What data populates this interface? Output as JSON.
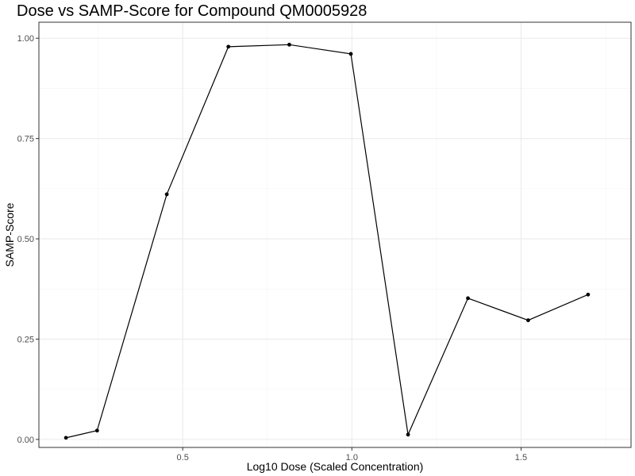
{
  "chart_data": {
    "type": "line",
    "title": "Dose vs SAMP-Score for Compound QM0005928",
    "xlabel": "Log10 Dose (Scaled Concentration)",
    "ylabel": "SAMP-Score",
    "xlim": [
      0.075,
      1.825
    ],
    "ylim": [
      -0.02,
      1.04
    ],
    "x_ticks": [
      0.5,
      1.0,
      1.5
    ],
    "x_tick_labels": [
      "0.5",
      "1.0",
      "1.5"
    ],
    "y_ticks": [
      0.0,
      0.25,
      0.5,
      0.75,
      1.0
    ],
    "y_tick_labels": [
      "0.00",
      "0.25",
      "0.50",
      "0.75",
      "1.00"
    ],
    "grid": true,
    "legend": "none",
    "colors": {
      "line": "#000000",
      "point": "#000000",
      "grid_major": "#ebebeb",
      "grid_minor": "#f5f5f5",
      "panel_border": "#333333"
    },
    "series": [
      {
        "x": [
          0.155,
          0.247,
          0.453,
          0.635,
          0.815,
          0.997,
          1.166,
          1.343,
          1.521,
          1.698
        ],
        "y": [
          0.004,
          0.022,
          0.611,
          0.979,
          0.984,
          0.961,
          0.012,
          0.352,
          0.297,
          0.361
        ]
      }
    ]
  }
}
